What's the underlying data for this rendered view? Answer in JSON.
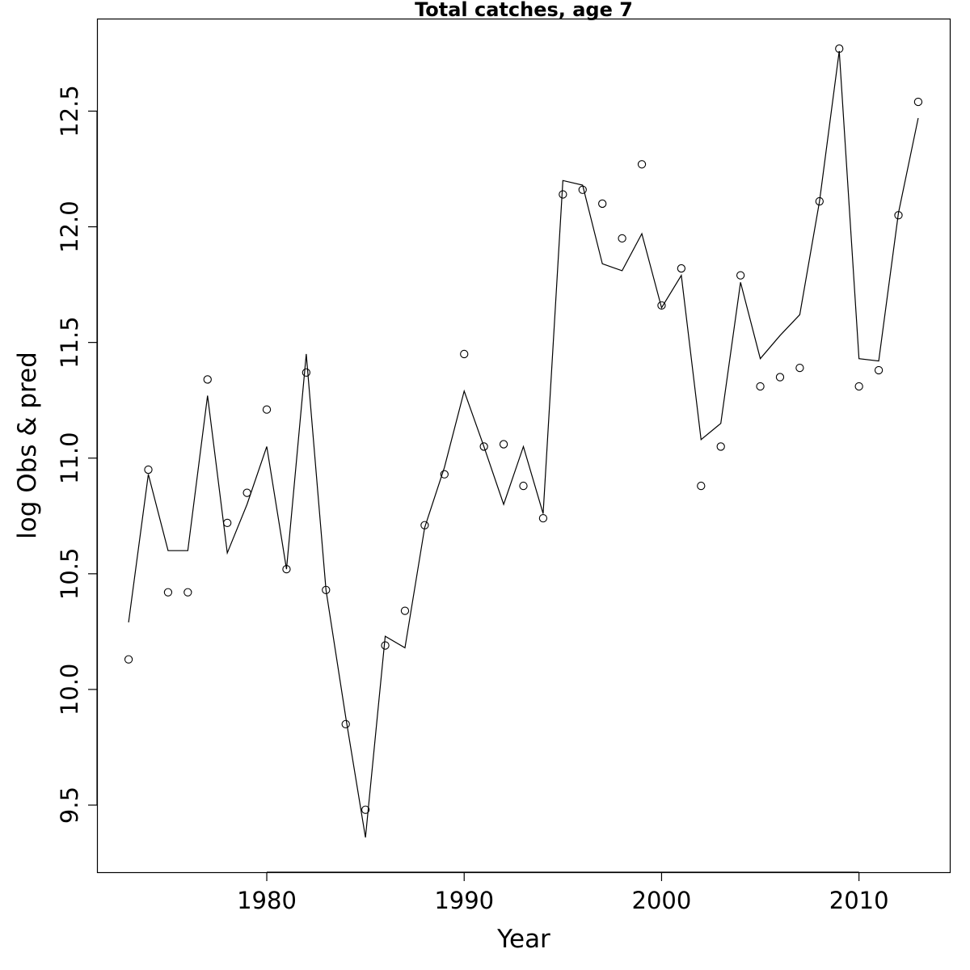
{
  "chart_data": {
    "type": "line",
    "title": "Total catches, age 7",
    "xlabel": "Year",
    "ylabel": "log Obs & pred",
    "xlim": [
      1971.4,
      2014.6
    ],
    "ylim": [
      9.21,
      12.9
    ],
    "xticks": [
      1980,
      1990,
      2000,
      2010
    ],
    "yticks": [
      9.5,
      10.0,
      10.5,
      11.0,
      11.5,
      12.0,
      12.5
    ],
    "ytick_labels": [
      "9.5",
      "10.0",
      "10.5",
      "11.0",
      "11.5",
      "12.0",
      "12.5"
    ],
    "grid": false,
    "series": [
      {
        "style": "points",
        "marker": "open-circle",
        "color": "#000000",
        "x": [
          1973,
          1974,
          1975,
          1976,
          1977,
          1978,
          1979,
          1980,
          1981,
          1982,
          1983,
          1984,
          1985,
          1986,
          1987,
          1988,
          1989,
          1990,
          1991,
          1992,
          1993,
          1994,
          1995,
          1996,
          1997,
          1998,
          1999,
          2000,
          2001,
          2002,
          2003,
          2004,
          2005,
          2006,
          2007,
          2008,
          2009,
          2010,
          2011,
          2012,
          2013
        ],
        "values": [
          10.13,
          10.95,
          10.42,
          10.42,
          11.34,
          10.72,
          10.85,
          11.21,
          10.52,
          11.37,
          10.43,
          9.85,
          9.48,
          10.19,
          10.34,
          10.71,
          10.93,
          11.45,
          11.05,
          11.06,
          10.88,
          10.74,
          12.14,
          12.16,
          12.1,
          11.95,
          12.27,
          11.66,
          11.82,
          10.88,
          11.05,
          11.79,
          11.31,
          11.35,
          11.39,
          12.11,
          12.77,
          11.31,
          11.38,
          12.05,
          12.54
        ]
      },
      {
        "style": "line",
        "color": "#000000",
        "x": [
          1973,
          1974,
          1975,
          1976,
          1977,
          1978,
          1979,
          1980,
          1981,
          1982,
          1983,
          1984,
          1985,
          1986,
          1987,
          1988,
          1989,
          1990,
          1991,
          1992,
          1993,
          1994,
          1995,
          1996,
          1997,
          1998,
          1999,
          2000,
          2001,
          2002,
          2003,
          2004,
          2005,
          2006,
          2007,
          2008,
          2009,
          2010,
          2011,
          2012,
          2013
        ],
        "values": [
          10.29,
          10.93,
          10.6,
          10.6,
          11.27,
          10.59,
          10.8,
          11.05,
          10.52,
          11.45,
          10.43,
          9.88,
          9.36,
          10.23,
          10.18,
          10.7,
          10.96,
          11.29,
          11.05,
          10.8,
          11.05,
          10.76,
          12.2,
          12.18,
          11.84,
          11.81,
          11.97,
          11.65,
          11.79,
          11.08,
          11.15,
          11.76,
          11.43,
          11.53,
          11.62,
          12.11,
          12.76,
          11.43,
          11.42,
          12.06,
          12.47
        ]
      }
    ]
  }
}
